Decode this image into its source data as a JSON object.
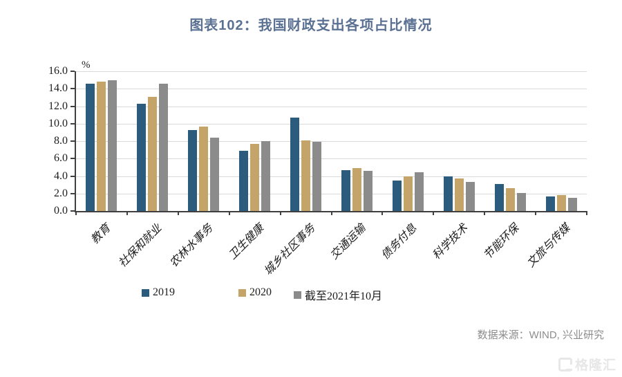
{
  "title": "图表102：我国财政支出各项占比情况",
  "chart_data": {
    "type": "bar",
    "title": "图表102：我国财政支出各项占比情况",
    "categories": [
      "教育",
      "社保和就业",
      "农林水事务",
      "卫生健康",
      "城乡社区事务",
      "交通运输",
      "债务付息",
      "科学技术",
      "节能环保",
      "文旅与传媒"
    ],
    "series": [
      {
        "name": "2019",
        "color": "#2B5C7D",
        "values": [
          14.6,
          12.3,
          9.3,
          6.9,
          10.7,
          4.7,
          3.5,
          4.0,
          3.1,
          1.7
        ]
      },
      {
        "name": "2020",
        "color": "#C5A469",
        "values": [
          14.8,
          13.1,
          9.7,
          7.7,
          8.1,
          4.9,
          4.0,
          3.7,
          2.6,
          1.8
        ]
      },
      {
        "name": "截至2021年10月",
        "color": "#8B8B8B",
        "values": [
          15.0,
          14.6,
          8.4,
          8.0,
          7.9,
          4.6,
          4.4,
          3.3,
          2.1,
          1.5
        ]
      }
    ],
    "ylabel": "%",
    "xlabel": "",
    "ylim": [
      0,
      16
    ],
    "ytick_step": 2,
    "ytick_labels": [
      "0.0",
      "2.0",
      "4.0",
      "6.0",
      "8.0",
      "10.0",
      "12.0",
      "14.0",
      "16.0"
    ],
    "grid": true,
    "legend_position": "bottom"
  },
  "yaxis_unit": "%",
  "source": {
    "text": "数据来源：WIND, 兴业研究"
  },
  "watermark": {
    "text": "格隆汇"
  },
  "colors": {
    "title": "#5B7193",
    "bar_2019": "#2B5C7D",
    "bar_2020": "#C5A469",
    "bar_2021": "#8B8B8B",
    "gridline": "#D9D9D9",
    "axis": "#3F3F3F",
    "source_text": "#8C8C8C"
  }
}
